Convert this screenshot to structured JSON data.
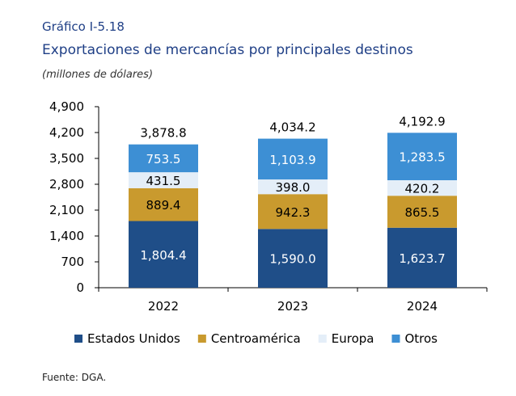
{
  "figure_label": "Gráfico I-5.18",
  "chart_data": {
    "type": "bar",
    "stacked": true,
    "title": "Exportaciones de mercancías por principales destinos",
    "subtitle": "(millones de dólares)",
    "categories": [
      "2022",
      "2023",
      "2024"
    ],
    "ylim": [
      0,
      4900
    ],
    "yticks": [
      "0",
      "700",
      "1,400",
      "2,100",
      "2,800",
      "3,500",
      "4,200",
      "4,900"
    ],
    "ytick_values": [
      0,
      700,
      1400,
      2100,
      2800,
      3500,
      4200,
      4900
    ],
    "series": [
      {
        "name": "Estados Unidos",
        "color": "#1f4e88",
        "values": [
          1804.4,
          1590.0,
          1623.7
        ],
        "labels": [
          "1,804.4",
          "1,590.0",
          "1,623.7"
        ],
        "label_color": "#ffffff"
      },
      {
        "name": "Centroamérica",
        "color": "#c99a2e",
        "values": [
          889.4,
          942.3,
          865.5
        ],
        "labels": [
          "889.4",
          "942.3",
          "865.5"
        ],
        "label_color": "#000000"
      },
      {
        "name": "Europa",
        "color": "#e4eef8",
        "values": [
          431.5,
          398.0,
          420.2
        ],
        "labels": [
          "431.5",
          "398.0",
          "420.2"
        ],
        "label_color": "#000000"
      },
      {
        "name": "Otros",
        "color": "#3d8fd4",
        "values": [
          753.5,
          1103.9,
          1283.5
        ],
        "labels": [
          "753.5",
          "1,103.9",
          "1,283.5"
        ],
        "label_color": "#ffffff"
      }
    ],
    "totals": [
      3878.8,
      4034.2,
      4192.9
    ],
    "total_labels": [
      "3,878.8",
      "4,034.2",
      "4,192.9"
    ],
    "legend_position": "bottom"
  },
  "source": "Fuente: DGA."
}
